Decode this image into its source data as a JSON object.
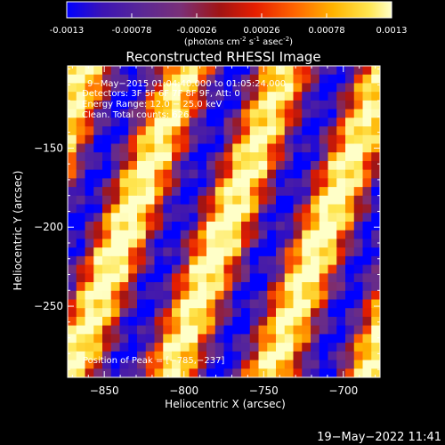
{
  "colorbar": {
    "ticks": [
      "-0.0013",
      "-0.00078",
      "-0.00026",
      "0.00026",
      "0.00078",
      "0.0013"
    ],
    "tick_values": [
      -0.0013,
      -0.00078,
      -0.00026,
      0.00026,
      0.00078,
      0.0013
    ],
    "range": [
      -0.0013,
      0.0013
    ],
    "units_main": "(photons cm",
    "units_exp1": "-2",
    "units_mid1": " s",
    "units_exp2": "-1",
    "units_mid2": " asec",
    "units_exp3": "-2",
    "units_end": ")"
  },
  "chart_data": {
    "type": "heatmap",
    "title": "Reconstructed RHESSI Image",
    "xlabel": "Heliocentric X (arcsec)",
    "ylabel": "Heliocentric Y (arcsec)",
    "xlim": [
      -873,
      -677
    ],
    "ylim": [
      -295,
      -98
    ],
    "xticks": [
      -850,
      -800,
      -750,
      -700
    ],
    "xtick_labels": [
      "−850",
      "−800",
      "−750",
      "−700"
    ],
    "yticks": [
      -150,
      -200,
      -250
    ],
    "ytick_labels": [
      "−150",
      "−200",
      "−250"
    ],
    "peak_position": [
      -785,
      -237
    ],
    "annotations": [
      "9−May−2015 01:04:40.000 to 01:05:24.000",
      "Detectors: 3F 5F 6F 7F 8F 9F, Att: 0",
      "Energy Range: 12.0 − 25.0 keV",
      "Clean.  Total counts: 626."
    ],
    "peak_label": "Position of Peak = [−785,−237]",
    "colormap": [
      "#0000ff",
      "#3c14b4",
      "#5a2896",
      "#7a3078",
      "#a01414",
      "#e61e00",
      "#ff6400",
      "#ffb400",
      "#ffe650",
      "#ffffc8"
    ]
  },
  "timestamp": "19−May−2022 11:41"
}
